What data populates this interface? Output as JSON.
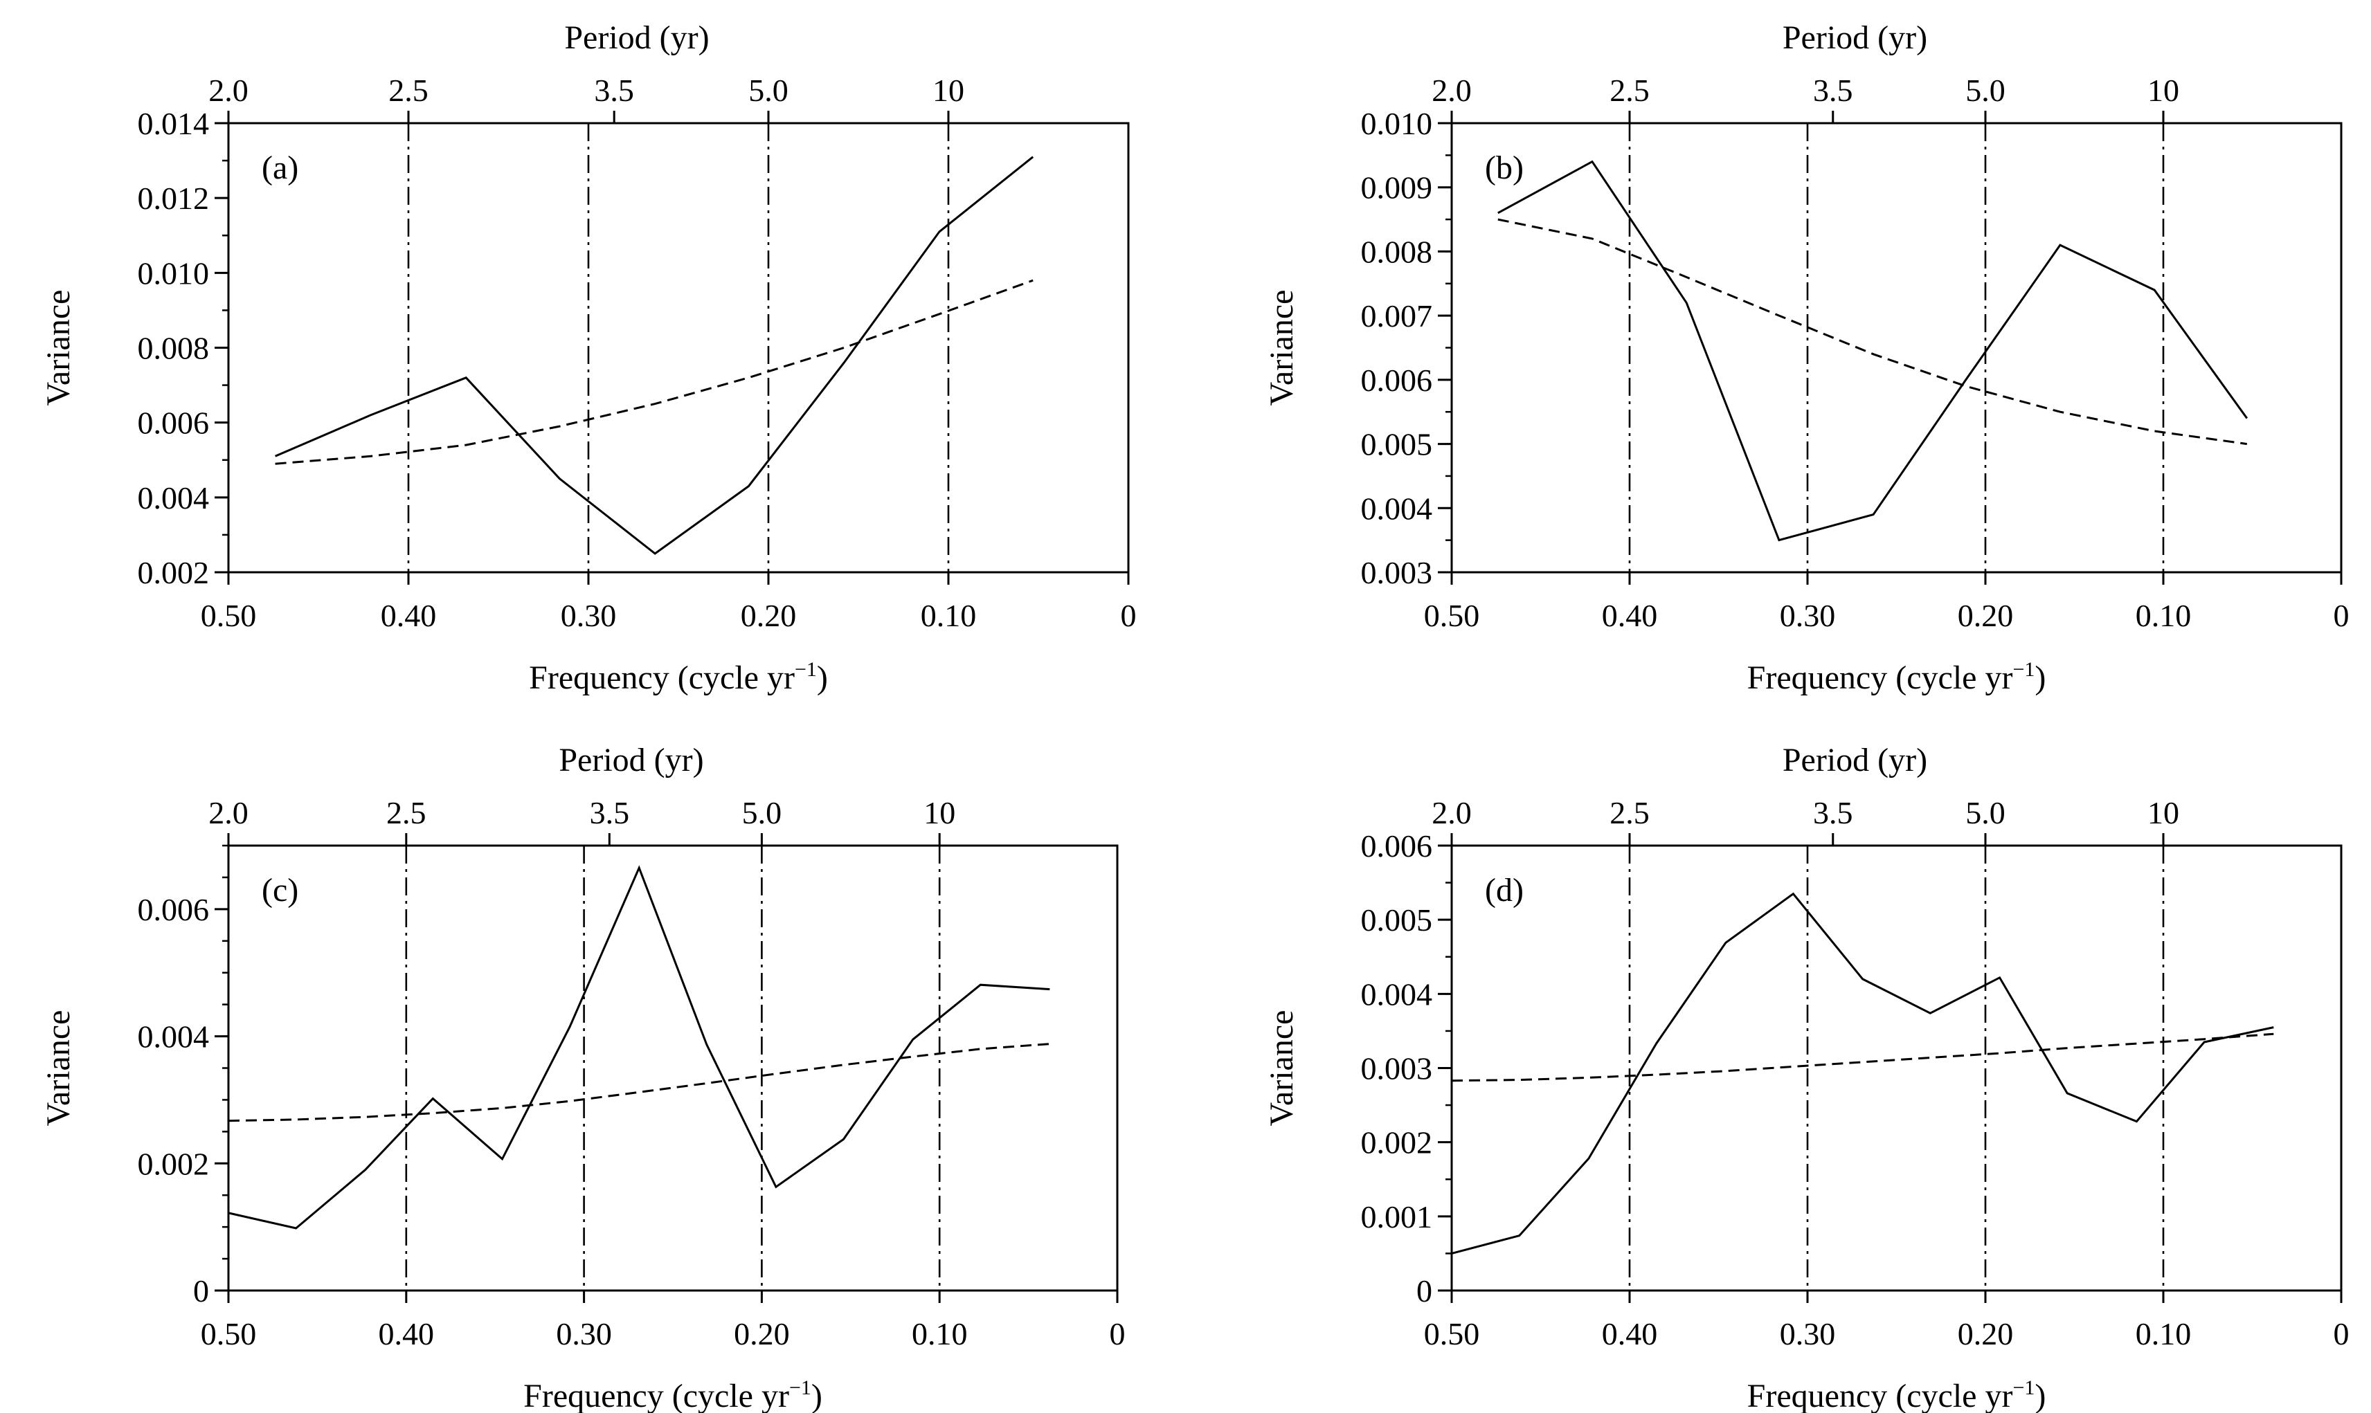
{
  "panels": [
    {
      "panel_label": "(a)",
      "chart_data": {
        "type": "line",
        "xlabel": "Frequency (cycle yr",
        "xlabel_sup": "−1",
        "xlabel_close": ")",
        "ylabel": "Variance",
        "top_axis_label": "Period (yr)",
        "xlim": [
          0.5,
          0
        ],
        "ylim": [
          0.002,
          0.014
        ],
        "x_ticks": [
          0.5,
          0.4,
          0.3,
          0.2,
          0.1,
          0
        ],
        "x_tick_labels": [
          "0.50",
          "0.40",
          "0.30",
          "0.20",
          "0.10",
          "0"
        ],
        "y_ticks": [
          0.002,
          0.004,
          0.006,
          0.008,
          0.01,
          0.012,
          0.014
        ],
        "y_tick_labels": [
          "0.002",
          "0.004",
          "0.006",
          "0.008",
          "0.010",
          "0.012",
          "0.014"
        ],
        "y_minor_step": 0.001,
        "top_ticks": [
          0.5,
          0.4,
          0.2857,
          0.2,
          0.1
        ],
        "top_tick_labels": [
          "2.0",
          "2.5",
          "3.5",
          "5.0",
          "10"
        ],
        "vlines": [
          0.4,
          0.3,
          0.2,
          0.1
        ],
        "series": [
          {
            "style": "solid",
            "x": [
              0.474,
              0.421,
              0.368,
              0.316,
              0.263,
              0.211,
              0.158,
              0.105,
              0.053
            ],
            "y": [
              0.0051,
              0.0062,
              0.0072,
              0.0045,
              0.0025,
              0.0043,
              0.0076,
              0.0111,
              0.0131
            ]
          },
          {
            "style": "dashed",
            "x": [
              0.474,
              0.421,
              0.368,
              0.316,
              0.263,
              0.211,
              0.158,
              0.105,
              0.053
            ],
            "y": [
              0.0049,
              0.0051,
              0.0054,
              0.0059,
              0.0065,
              0.0072,
              0.008,
              0.0089,
              0.0098
            ]
          }
        ]
      }
    },
    {
      "panel_label": "(b)",
      "chart_data": {
        "type": "line",
        "xlabel": "Frequency (cycle yr",
        "xlabel_sup": "−1",
        "xlabel_close": ")",
        "ylabel": "Variance",
        "top_axis_label": "Period (yr)",
        "xlim": [
          0.5,
          0
        ],
        "ylim": [
          0.003,
          0.01
        ],
        "x_ticks": [
          0.5,
          0.4,
          0.3,
          0.2,
          0.1,
          0
        ],
        "x_tick_labels": [
          "0.50",
          "0.40",
          "0.30",
          "0.20",
          "0.10",
          "0"
        ],
        "y_ticks": [
          0.003,
          0.004,
          0.005,
          0.006,
          0.007,
          0.008,
          0.009,
          0.01
        ],
        "y_tick_labels": [
          "0.003",
          "0.004",
          "0.005",
          "0.006",
          "0.007",
          "0.008",
          "0.009",
          "0.010"
        ],
        "y_minor_step": 0.0005,
        "top_ticks": [
          0.5,
          0.4,
          0.2857,
          0.2,
          0.1
        ],
        "top_tick_labels": [
          "2.0",
          "2.5",
          "3.5",
          "5.0",
          "10"
        ],
        "vlines": [
          0.4,
          0.3,
          0.2,
          0.1
        ],
        "series": [
          {
            "style": "solid",
            "x": [
              0.474,
              0.421,
              0.368,
              0.316,
              0.263,
              0.211,
              0.158,
              0.105,
              0.053
            ],
            "y": [
              0.0086,
              0.0094,
              0.0072,
              0.0035,
              0.0039,
              0.006,
              0.0081,
              0.0074,
              0.0054
            ]
          },
          {
            "style": "dashed",
            "x": [
              0.474,
              0.421,
              0.368,
              0.316,
              0.263,
              0.211,
              0.158,
              0.105,
              0.053
            ],
            "y": [
              0.0085,
              0.0082,
              0.0076,
              0.007,
              0.0064,
              0.0059,
              0.0055,
              0.0052,
              0.005
            ]
          }
        ]
      }
    },
    {
      "panel_label": "(c)",
      "chart_data": {
        "type": "line",
        "xlabel": "Frequency (cycle yr",
        "xlabel_sup": "−1",
        "xlabel_close": ")",
        "ylabel": "Variance",
        "top_axis_label": "Period (yr)",
        "xlim": [
          0.5,
          0
        ],
        "ylim": [
          0,
          0.007
        ],
        "x_ticks": [
          0.5,
          0.4,
          0.3,
          0.2,
          0.1,
          0
        ],
        "x_tick_labels": [
          "0.50",
          "0.40",
          "0.30",
          "0.20",
          "0.10",
          "0"
        ],
        "y_ticks": [
          0,
          0.002,
          0.004,
          0.006
        ],
        "y_tick_labels": [
          "0",
          "0.002",
          "0.004",
          "0.006"
        ],
        "y_minor_step": 0.0005,
        "top_ticks": [
          0.5,
          0.4,
          0.2857,
          0.2,
          0.1
        ],
        "top_tick_labels": [
          "2.0",
          "2.5",
          "3.5",
          "5.0",
          "10"
        ],
        "vlines": [
          0.4,
          0.3,
          0.2,
          0.1
        ],
        "series": [
          {
            "style": "solid",
            "x": [
              0.5,
              0.462,
              0.423,
              0.385,
              0.346,
              0.308,
              0.269,
              0.231,
              0.192,
              0.154,
              0.115,
              0.077,
              0.038
            ],
            "y": [
              0.00122,
              0.00098,
              0.0019,
              0.00302,
              0.00207,
              0.00415,
              0.00665,
              0.00387,
              0.00163,
              0.00238,
              0.00395,
              0.00481,
              0.00474
            ]
          },
          {
            "style": "dashed",
            "x": [
              0.5,
              0.462,
              0.423,
              0.385,
              0.346,
              0.308,
              0.269,
              0.231,
              0.192,
              0.154,
              0.115,
              0.077,
              0.038
            ],
            "y": [
              0.00267,
              0.00269,
              0.00273,
              0.00279,
              0.00287,
              0.00298,
              0.00312,
              0.00326,
              0.00341,
              0.00355,
              0.00368,
              0.0038,
              0.00388
            ]
          }
        ]
      }
    },
    {
      "panel_label": "(d)",
      "chart_data": {
        "type": "line",
        "xlabel": "Frequency (cycle yr",
        "xlabel_sup": "−1",
        "xlabel_close": ")",
        "ylabel": "Variance",
        "top_axis_label": "Period (yr)",
        "xlim": [
          0.5,
          0
        ],
        "ylim": [
          0,
          0.006
        ],
        "x_ticks": [
          0.5,
          0.4,
          0.3,
          0.2,
          0.1,
          0
        ],
        "x_tick_labels": [
          "0.50",
          "0.40",
          "0.30",
          "0.20",
          "0.10",
          "0"
        ],
        "y_ticks": [
          0,
          0.001,
          0.002,
          0.003,
          0.004,
          0.005,
          0.006
        ],
        "y_tick_labels": [
          "0",
          "0.001",
          "0.002",
          "0.003",
          "0.004",
          "0.005",
          "0.006"
        ],
        "y_minor_step": 0.0005,
        "top_ticks": [
          0.5,
          0.4,
          0.2857,
          0.2,
          0.1
        ],
        "top_tick_labels": [
          "2.0",
          "2.5",
          "3.5",
          "5.0",
          "10"
        ],
        "vlines": [
          0.4,
          0.3,
          0.2,
          0.1
        ],
        "series": [
          {
            "style": "solid",
            "x": [
              0.5,
              0.462,
              0.423,
              0.385,
              0.346,
              0.308,
              0.269,
              0.231,
              0.192,
              0.154,
              0.115,
              0.077,
              0.038
            ],
            "y": [
              0.0005,
              0.00074,
              0.00178,
              0.00333,
              0.00469,
              0.00535,
              0.0042,
              0.00374,
              0.00422,
              0.00266,
              0.00228,
              0.00335,
              0.00355
            ]
          },
          {
            "style": "dashed",
            "x": [
              0.5,
              0.462,
              0.423,
              0.385,
              0.346,
              0.308,
              0.269,
              0.231,
              0.192,
              0.154,
              0.115,
              0.077,
              0.038
            ],
            "y": [
              0.00283,
              0.00284,
              0.00287,
              0.00291,
              0.00296,
              0.00302,
              0.00308,
              0.00314,
              0.0032,
              0.00327,
              0.00333,
              0.00339,
              0.00346
            ]
          }
        ]
      }
    }
  ]
}
